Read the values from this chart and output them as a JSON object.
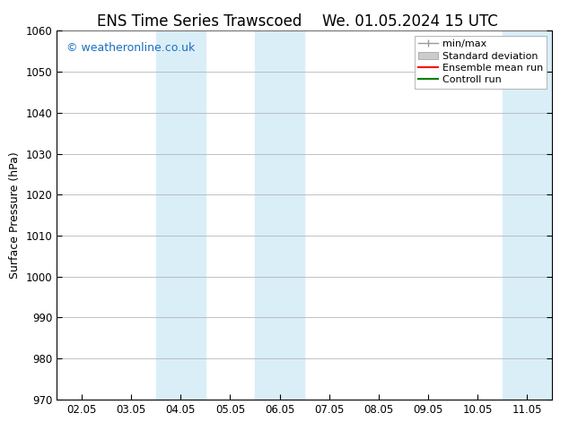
{
  "title_left": "ENS Time Series Trawscoed",
  "title_right": "We. 01.05.2024 15 UTC",
  "ylabel": "Surface Pressure (hPa)",
  "ylim": [
    970,
    1060
  ],
  "yticks": [
    970,
    980,
    990,
    1000,
    1010,
    1020,
    1030,
    1040,
    1050,
    1060
  ],
  "xtick_labels": [
    "02.05",
    "03.05",
    "04.05",
    "05.05",
    "06.05",
    "07.05",
    "08.05",
    "09.05",
    "10.05",
    "11.05"
  ],
  "xtick_positions": [
    0,
    1,
    2,
    3,
    4,
    5,
    6,
    7,
    8,
    9
  ],
  "xlim": [
    -0.5,
    9.5
  ],
  "shaded_bands": [
    {
      "x_start": 1.5,
      "x_end": 2.5,
      "color": "#daeef8"
    },
    {
      "x_start": 3.5,
      "x_end": 4.5,
      "color": "#daeef8"
    },
    {
      "x_start": 8.5,
      "x_end": 9.5,
      "color": "#daeef8"
    }
  ],
  "watermark_text": "© weatheronline.co.uk",
  "watermark_color": "#1a6fbf",
  "watermark_fontsize": 9,
  "legend_entries": [
    {
      "label": "min/max"
    },
    {
      "label": "Standard deviation"
    },
    {
      "label": "Ensemble mean run",
      "color": "red"
    },
    {
      "label": "Controll run",
      "color": "green"
    }
  ],
  "bg_color": "#ffffff",
  "plot_bg_color": "#ffffff",
  "grid_color": "#aaaaaa",
  "title_fontsize": 12,
  "tick_fontsize": 8.5,
  "ylabel_fontsize": 9
}
